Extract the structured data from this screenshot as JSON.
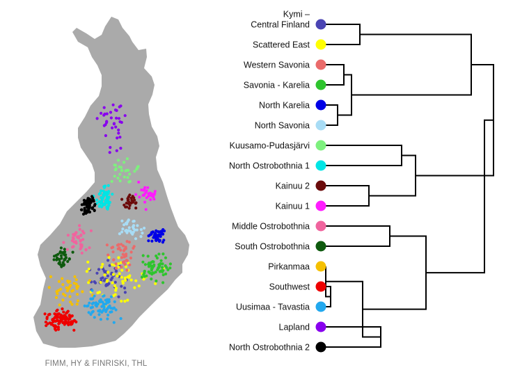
{
  "credit": "FIMM, HY & FINRISKI, THL",
  "populations": [
    {
      "label": "Kymi –\nCentral Finland",
      "color": "#4a44b3"
    },
    {
      "label": "Scattered East",
      "color": "#ffff00"
    },
    {
      "label": "Western Savonia",
      "color": "#ea6b6b"
    },
    {
      "label": "Savonia - Karelia",
      "color": "#2ec42e"
    },
    {
      "label": "North Karelia",
      "color": "#0000e6"
    },
    {
      "label": "North Savonia",
      "color": "#a8dcf5"
    },
    {
      "label": "Kuusamo-Pudasjärvi",
      "color": "#7ef07e"
    },
    {
      "label": "North Ostrobothnia 1",
      "color": "#00e5e5"
    },
    {
      "label": "Kainuu 2",
      "color": "#6b0b0b"
    },
    {
      "label": "Kainuu 1",
      "color": "#ff1cff"
    },
    {
      "label": "Middle Ostrobothnia",
      "color": "#f0649e"
    },
    {
      "label": "South Ostrobothnia",
      "color": "#0e5a0e"
    },
    {
      "label": "Pirkanmaa",
      "color": "#f5c000"
    },
    {
      "label": "Southwest",
      "color": "#ee0000"
    },
    {
      "label": "Uusimaa - Tavastia",
      "color": "#22a8ee"
    },
    {
      "label": "Lapland",
      "color": "#8800ee"
    },
    {
      "label": "North Ostrobothnia 2",
      "color": "#000000"
    }
  ],
  "map": {
    "land_color": "#aaaaaa"
  }
}
